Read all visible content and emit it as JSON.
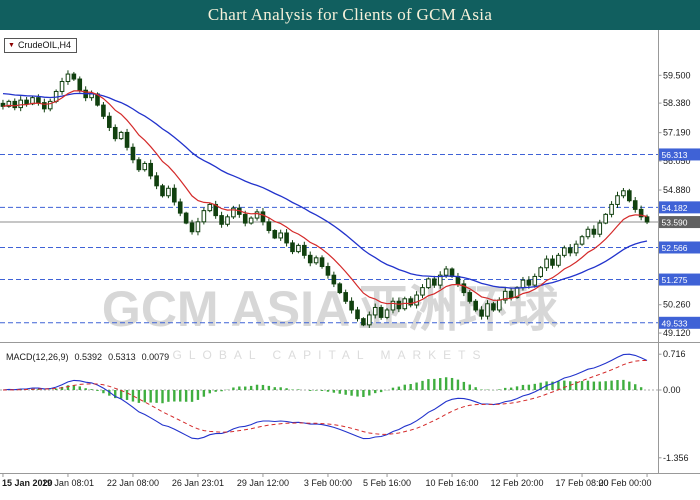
{
  "title_bar": {
    "title": "Chart Analysis for Clients of GCM Asia"
  },
  "symbol_box": {
    "label": "CrudeOIL,H4",
    "dropdown_glyph": "▼"
  },
  "watermark": {
    "brand": "GCM ASIA",
    "cjk": "亚洲环球",
    "subtitle": "GLOBAL CAPITAL MARKETS"
  },
  "chart_data": {
    "type": "candlestick",
    "symbol": "CrudeOIL",
    "timeframe": "H4",
    "title": "Chart Analysis for Clients of GCM Asia",
    "ylim": [
      48.8,
      60.6
    ],
    "y_ticks": [
      "59.500",
      "58.380",
      "57.190",
      "56.050",
      "54.880",
      "50.260",
      "49.120"
    ],
    "levels": [
      "56.313",
      "54.182",
      "52.566",
      "51.275",
      "49.533"
    ],
    "current_price": "53.590",
    "x_labels": [
      "15 Jan 2020",
      "19 Jan 08:01",
      "22 Jan 08:00",
      "26 Jan 23:01",
      "29 Jan 12:00",
      "3 Feb 00:00",
      "5 Feb 16:00",
      "10 Feb 16:00",
      "12 Feb 20:00",
      "17 Feb 08:00",
      "20 Feb 00:00"
    ],
    "x_label_indices": [
      0,
      11,
      22,
      33,
      44,
      55,
      65,
      76,
      87,
      98,
      109
    ],
    "closes": [
      58.25,
      58.45,
      58.2,
      58.5,
      58.35,
      58.6,
      58.4,
      58.15,
      58.45,
      58.85,
      59.25,
      59.55,
      59.35,
      58.9,
      58.6,
      58.75,
      58.3,
      57.85,
      57.4,
      56.95,
      57.2,
      56.6,
      56.1,
      55.7,
      55.95,
      55.45,
      55.05,
      54.65,
      54.95,
      54.4,
      53.95,
      53.55,
      53.2,
      53.6,
      54.05,
      54.3,
      53.85,
      53.5,
      53.8,
      54.15,
      53.9,
      53.55,
      53.75,
      54.0,
      53.6,
      53.25,
      52.95,
      53.15,
      52.75,
      52.4,
      52.65,
      52.25,
      51.95,
      52.15,
      51.8,
      51.45,
      51.1,
      50.75,
      50.4,
      50.05,
      49.7,
      49.45,
      49.85,
      50.15,
      49.75,
      50.05,
      50.4,
      50.1,
      50.5,
      50.25,
      50.65,
      50.95,
      51.3,
      51.05,
      51.45,
      51.7,
      51.4,
      51.1,
      50.75,
      50.4,
      50.05,
      49.8,
      50.3,
      50.05,
      50.45,
      50.8,
      50.55,
      50.95,
      51.25,
      51.05,
      51.4,
      51.75,
      52.1,
      51.85,
      52.25,
      52.55,
      52.35,
      52.7,
      53.0,
      53.3,
      53.1,
      53.55,
      53.9,
      54.3,
      54.65,
      54.85,
      54.45,
      54.1,
      53.8,
      53.59
    ],
    "overlays": [
      {
        "name": "ma-fast",
        "period": 10,
        "color": "#d42a2a"
      },
      {
        "name": "ma-slow",
        "period": 30,
        "color": "#2233cc"
      }
    ],
    "indicator": {
      "name": "MACD(12,26,9)",
      "value_macd": "0.5392",
      "value_signal": "0.5313",
      "value_hist": "0.0079",
      "params": {
        "fast": 12,
        "slow": 26,
        "signal": 9
      },
      "ylim": [
        -1.62,
        0.88
      ],
      "y_ticks": [
        "0.716",
        "0.00",
        "-1.356"
      ],
      "colors": {
        "hist": "#3fae3f",
        "macd": "#2233cc",
        "signal": "#d42a2a"
      }
    },
    "colors": {
      "bull_fill": "#ffffff",
      "bear_fill": "#11400f",
      "candle_border": "#11400f",
      "level": "#3f62d6",
      "price_line": "#8c8c8c",
      "price_box": "#616161",
      "axis_text": "#1a1a1a",
      "separator": "#999999"
    }
  }
}
